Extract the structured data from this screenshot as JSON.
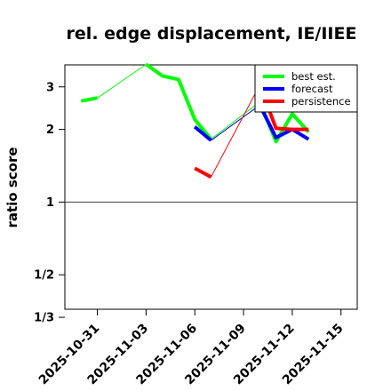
{
  "chart_data": {
    "type": "line",
    "title": "rel. edge displacement, IE/IIEE",
    "ylabel": "ratio score",
    "y_scale": "log",
    "xlim": [
      "2025-10-29",
      "2025-11-16"
    ],
    "ylim": [
      0.36,
      3.7
    ],
    "grid": false,
    "reference_line": 1,
    "x_ticks": [
      {
        "label": "2025-10-31",
        "date": "2025-10-31",
        "color": "#000000"
      },
      {
        "label": "2025-11-03",
        "date": "2025-11-03",
        "color": "#000000"
      },
      {
        "label": "2025-11-06",
        "date": "2025-11-06",
        "color": "#228B22"
      },
      {
        "label": "2025-11-09",
        "date": "2025-11-09",
        "color": "#000000"
      },
      {
        "label": "2025-11-12",
        "date": "2025-11-12",
        "color": "#000000"
      },
      {
        "label": "2025-11-15",
        "date": "2025-11-15",
        "color": "#000000"
      }
    ],
    "y_ticks": [
      {
        "label": "1/3",
        "value": 0.3333
      },
      {
        "label": "1/2",
        "value": 0.5
      },
      {
        "label": "1",
        "value": 1
      },
      {
        "label": "2",
        "value": 2
      },
      {
        "label": "3",
        "value": 3
      }
    ],
    "legend": {
      "position": "top-right"
    },
    "series": [
      {
        "name": "best est.",
        "color": "#00ff00",
        "segments": [
          [
            [
              "2025-10-30",
              2.62
            ],
            [
              "2025-10-31",
              2.7
            ]
          ],
          [
            [
              "2025-11-03",
              3.72
            ],
            [
              "2025-11-04",
              3.33
            ],
            [
              "2025-11-05",
              3.22
            ],
            [
              "2025-11-06",
              2.2
            ],
            [
              "2025-11-07",
              1.82
            ]
          ],
          [
            [
              "2025-11-10",
              2.6
            ],
            [
              "2025-11-11",
              1.78
            ],
            [
              "2025-11-12",
              2.32
            ],
            [
              "2025-11-13",
              1.95
            ]
          ]
        ],
        "connectors": [
          [
            [
              "2025-10-31",
              2.7
            ],
            [
              "2025-11-03",
              3.72
            ]
          ],
          [
            [
              "2025-11-07",
              1.82
            ],
            [
              "2025-11-10",
              2.6
            ]
          ]
        ]
      },
      {
        "name": "forecast",
        "color": "#0000ff",
        "segments": [
          [
            [
              "2025-11-06",
              2.05
            ],
            [
              "2025-11-07",
              1.8
            ]
          ],
          [
            [
              "2025-11-10",
              2.52
            ],
            [
              "2025-11-11",
              1.85
            ],
            [
              "2025-11-12",
              2.0
            ],
            [
              "2025-11-13",
              1.82
            ]
          ]
        ],
        "connectors": [
          [
            [
              "2025-11-07",
              1.8
            ],
            [
              "2025-11-10",
              2.52
            ]
          ]
        ]
      },
      {
        "name": "persistence",
        "color": "#ff0000",
        "segments": [
          [
            [
              "2025-11-06",
              1.38
            ],
            [
              "2025-11-07",
              1.27
            ]
          ],
          [
            [
              "2025-11-10",
              3.05
            ],
            [
              "2025-11-11",
              2.02
            ],
            [
              "2025-11-12",
              2.0
            ],
            [
              "2025-11-13",
              2.0
            ]
          ]
        ],
        "connectors": [
          [
            [
              "2025-11-07",
              1.27
            ],
            [
              "2025-11-10",
              3.05
            ]
          ]
        ]
      }
    ]
  }
}
